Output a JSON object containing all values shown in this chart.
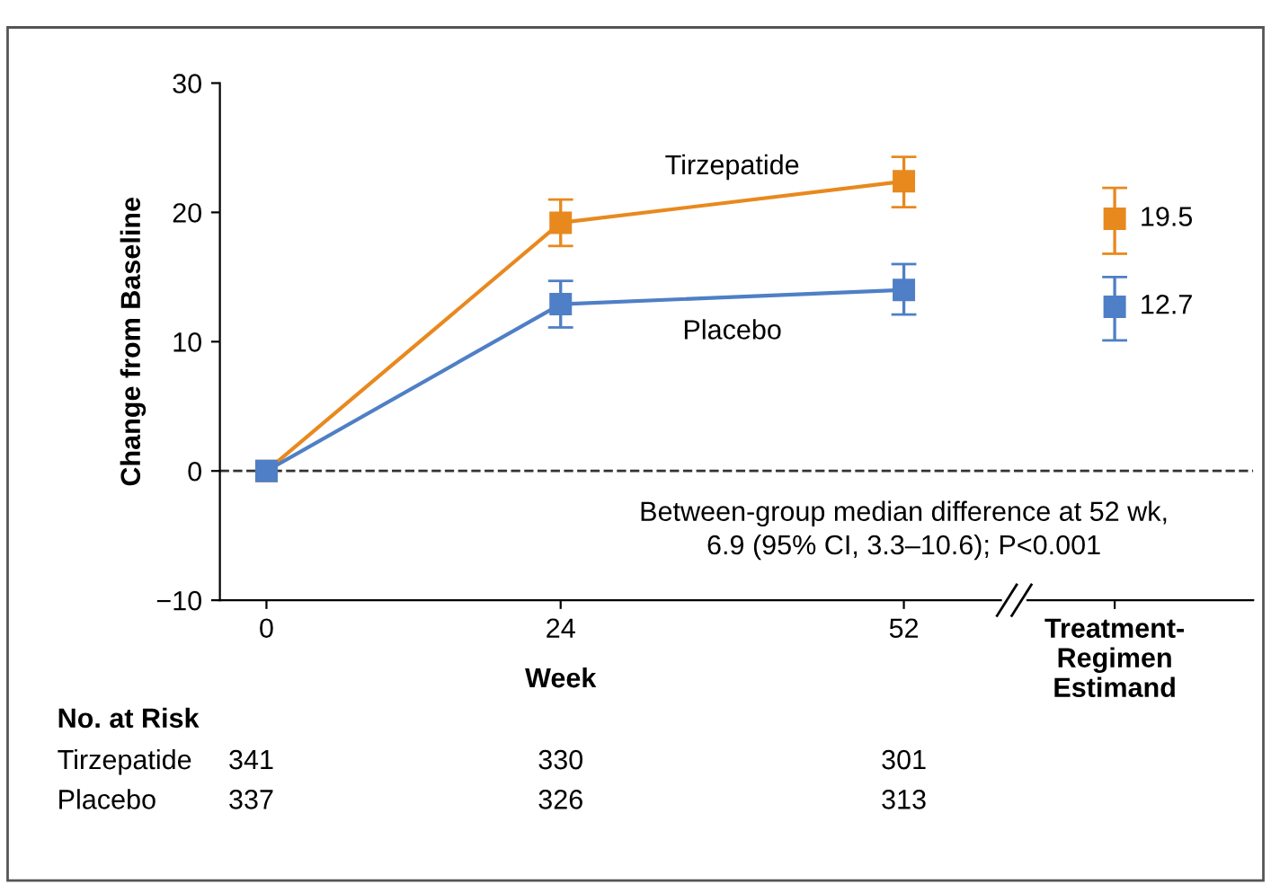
{
  "chart_data": {
    "type": "line",
    "ylabel": "Change from Baseline",
    "xlabel": "Week",
    "xlim": [
      -3.8,
      80.5
    ],
    "xticks": [
      0,
      24,
      52,
      {
        "value": 69.2,
        "label": "Treatment-\nRegimen\nEstimand"
      }
    ],
    "ylim": [
      -10,
      30
    ],
    "yticks": [
      -10,
      0,
      10,
      20,
      30
    ],
    "grid": false,
    "legend": false,
    "marker": "square",
    "line_style": "solid",
    "series": [
      {
        "name": "Tirzepatide",
        "color": "#e8891e",
        "x": [
          0,
          24,
          52
        ],
        "values": [
          0,
          19.2,
          22.4
        ],
        "errors": [
          null,
          [
            17.4,
            21.0
          ],
          [
            20.4,
            24.3
          ]
        ]
      },
      {
        "name": "Placebo",
        "color": "#4f7fc6",
        "x": [
          0,
          24,
          52
        ],
        "values": [
          0,
          12.9,
          14.0
        ],
        "errors": [
          null,
          [
            11.1,
            14.7
          ],
          [
            12.1,
            16.0
          ]
        ]
      },
      {
        "type": "scatter",
        "color": "#e8891e",
        "x": [
          69.2
        ],
        "values": [
          19.5
        ],
        "errors": [
          [
            16.8,
            21.9
          ]
        ],
        "value_labels": [
          "19.5"
        ]
      },
      {
        "type": "scatter",
        "color": "#4f7fc6",
        "x": [
          69.2
        ],
        "values": [
          12.7
        ],
        "errors": [
          [
            10.1,
            15.0
          ]
        ],
        "value_labels": [
          "12.7"
        ]
      }
    ],
    "ref_lines": [
      {
        "axis": "y",
        "value": 0,
        "line_style": "dashed",
        "color": "#333333"
      }
    ],
    "annotations": [
      {
        "text": "Between-group median difference at 52 wk,\n6.9 (95% CI, 3.3–10.6); P<0.001",
        "x": 52,
        "y": 0
      },
      "No. at Risk",
      "Tirzepatide",
      "341",
      "330",
      "301",
      "Placebo",
      "337",
      "326",
      "313"
    ]
  }
}
